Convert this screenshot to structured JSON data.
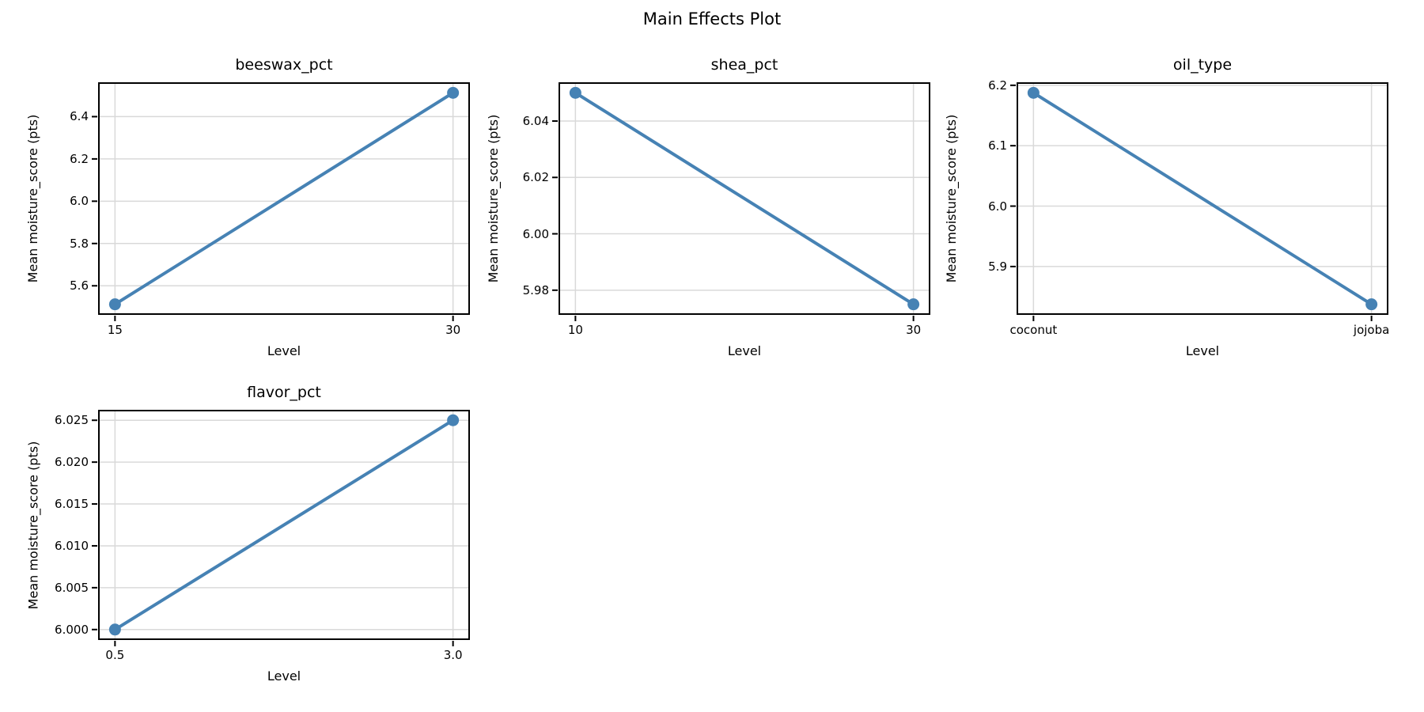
{
  "suptitle": "Main Effects Plot",
  "chart_data": [
    {
      "type": "line",
      "title": "beeswax_pct",
      "xlabel": "Level",
      "ylabel": "Mean moisture_score (pts)",
      "categories": [
        "15",
        "30"
      ],
      "values": [
        5.5125,
        6.5125
      ],
      "ylim": [
        5.4625,
        6.5625
      ],
      "yticks": [
        5.6,
        5.8,
        6.0,
        6.2,
        6.4
      ],
      "ytick_labels": [
        "5.6",
        "5.8",
        "6.0",
        "6.2",
        "6.4"
      ],
      "grid": "on",
      "line_color": "#4682B4"
    },
    {
      "type": "line",
      "title": "shea_pct",
      "xlabel": "Level",
      "ylabel": "Mean moisture_score (pts)",
      "categories": [
        "10",
        "30"
      ],
      "values": [
        6.05,
        5.975
      ],
      "ylim": [
        5.97125,
        6.05375
      ],
      "yticks": [
        5.98,
        6.0,
        6.02,
        6.04
      ],
      "ytick_labels": [
        "5.98",
        "6.00",
        "6.02",
        "6.04"
      ],
      "grid": "on",
      "line_color": "#4682B4"
    },
    {
      "type": "line",
      "title": "oil_type",
      "xlabel": "Level",
      "ylabel": "Mean moisture_score (pts)",
      "categories": [
        "coconut",
        "jojoba"
      ],
      "values": [
        6.1875,
        5.8375
      ],
      "ylim": [
        5.82,
        6.205
      ],
      "yticks": [
        5.9,
        6.0,
        6.1,
        6.2
      ],
      "ytick_labels": [
        "5.9",
        "6.0",
        "6.1",
        "6.2"
      ],
      "grid": "on",
      "line_color": "#4682B4"
    },
    {
      "type": "line",
      "title": "flavor_pct",
      "xlabel": "Level",
      "ylabel": "Mean moisture_score (pts)",
      "categories": [
        "0.5",
        "3.0"
      ],
      "values": [
        6.0,
        6.025
      ],
      "ylim": [
        5.99875,
        6.02625
      ],
      "yticks": [
        6.0,
        6.005,
        6.01,
        6.015,
        6.02,
        6.025
      ],
      "ytick_labels": [
        "6.000",
        "6.005",
        "6.010",
        "6.015",
        "6.020",
        "6.025"
      ],
      "grid": "on",
      "line_color": "#4682B4"
    }
  ],
  "style": {
    "line_color": "#4682B4",
    "grid_color": "#d9d9d9",
    "spine_color": "#000000",
    "background": "#ffffff"
  }
}
